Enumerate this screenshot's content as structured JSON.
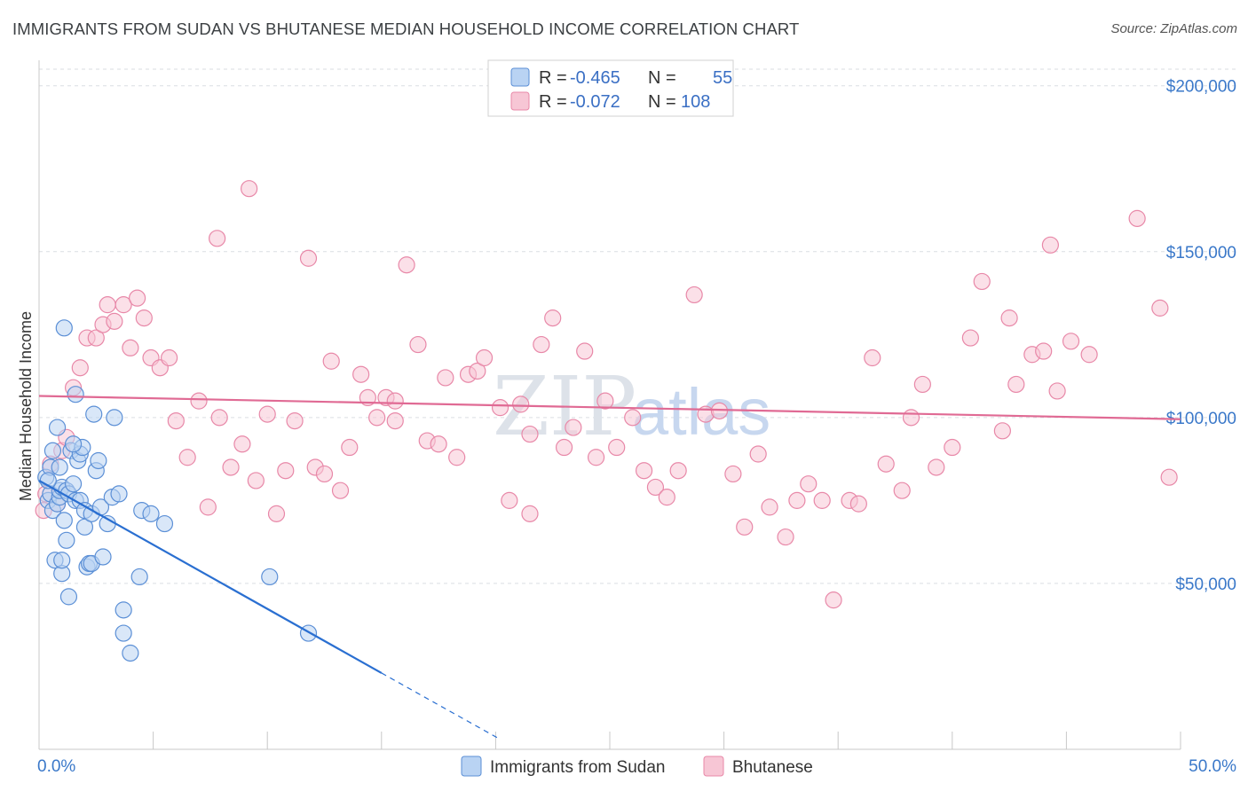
{
  "title": "IMMIGRANTS FROM SUDAN VS BHUTANESE MEDIAN HOUSEHOLD INCOME CORRELATION CHART",
  "source": "Source: ZipAtlas.com",
  "colors": {
    "blue": "#5b8fd6",
    "blue_fill": "#b9d3f3",
    "blue_line": "#2a6fd1",
    "pink": "#e888a8",
    "pink_fill": "#f7c6d5",
    "pink_line": "#e06a94",
    "tick_label": "#3a78c9"
  },
  "legend": {
    "rows": [
      {
        "r_label": "R =",
        "r_value": "-0.465",
        "n_label": "N =",
        "n_value": "55"
      },
      {
        "r_label": "R =",
        "r_value": "-0.072",
        "n_label": "N =",
        "n_value": "108"
      }
    ]
  },
  "watermark": {
    "zip": "ZIP",
    "atlas": "atlas"
  },
  "chart_data": {
    "type": "scatter",
    "xlabel": "",
    "ylabel": "Median Household Income",
    "xlim": [
      0,
      50
    ],
    "ylim": [
      0,
      205000
    ],
    "x_tick_labels": [
      "0.0%",
      "50.0%"
    ],
    "y_ticks": [
      50000,
      100000,
      150000,
      200000
    ],
    "y_tick_labels": [
      "$50,000",
      "$100,000",
      "$150,000",
      "$200,000"
    ],
    "series": [
      {
        "name": "Immigrants from Sudan",
        "trend": {
          "x0": 0,
          "y0": 81000,
          "x1": 15,
          "y1": 23000,
          "dash_to_x": 20.2,
          "dash_to_y": 3000
        },
        "points": [
          [
            0.3,
            82000
          ],
          [
            0.4,
            75000
          ],
          [
            0.5,
            85000
          ],
          [
            0.5,
            77000
          ],
          [
            0.6,
            90000
          ],
          [
            0.6,
            72000
          ],
          [
            0.7,
            57000
          ],
          [
            0.8,
            97000
          ],
          [
            0.8,
            74000
          ],
          [
            0.9,
            76000
          ],
          [
            0.9,
            78000
          ],
          [
            1.0,
            53000
          ],
          [
            1.0,
            57000
          ],
          [
            1.0,
            79000
          ],
          [
            1.1,
            127000
          ],
          [
            1.1,
            69000
          ],
          [
            1.2,
            63000
          ],
          [
            1.2,
            78000
          ],
          [
            1.3,
            46000
          ],
          [
            1.3,
            77000
          ],
          [
            1.4,
            90000
          ],
          [
            1.5,
            80000
          ],
          [
            1.6,
            75000
          ],
          [
            1.6,
            107000
          ],
          [
            1.7,
            87000
          ],
          [
            1.8,
            75000
          ],
          [
            1.8,
            89000
          ],
          [
            1.9,
            91000
          ],
          [
            2.0,
            72000
          ],
          [
            2.0,
            67000
          ],
          [
            2.1,
            55000
          ],
          [
            2.2,
            56000
          ],
          [
            2.3,
            56000
          ],
          [
            2.3,
            71000
          ],
          [
            2.4,
            101000
          ],
          [
            2.5,
            84000
          ],
          [
            2.6,
            87000
          ],
          [
            2.7,
            73000
          ],
          [
            2.8,
            58000
          ],
          [
            3.0,
            68000
          ],
          [
            3.2,
            76000
          ],
          [
            3.3,
            100000
          ],
          [
            3.5,
            77000
          ],
          [
            3.7,
            42000
          ],
          [
            3.7,
            35000
          ],
          [
            4.0,
            29000
          ],
          [
            4.4,
            52000
          ],
          [
            4.5,
            72000
          ],
          [
            4.9,
            71000
          ],
          [
            5.5,
            68000
          ],
          [
            10.1,
            52000
          ],
          [
            11.8,
            35000
          ],
          [
            0.4,
            81000
          ],
          [
            0.9,
            85000
          ],
          [
            1.5,
            92000
          ]
        ]
      },
      {
        "name": "Bhutanese",
        "trend": {
          "x0": 0,
          "y0": 106500,
          "x1": 50,
          "y1": 99500
        },
        "points": [
          [
            0.2,
            72000
          ],
          [
            0.3,
            77000
          ],
          [
            0.5,
            86000
          ],
          [
            0.8,
            74000
          ],
          [
            1.0,
            90000
          ],
          [
            1.2,
            94000
          ],
          [
            1.5,
            109000
          ],
          [
            1.8,
            115000
          ],
          [
            2.1,
            124000
          ],
          [
            2.5,
            124000
          ],
          [
            2.8,
            128000
          ],
          [
            3.0,
            134000
          ],
          [
            3.3,
            129000
          ],
          [
            3.7,
            134000
          ],
          [
            4.0,
            121000
          ],
          [
            4.3,
            136000
          ],
          [
            4.6,
            130000
          ],
          [
            4.9,
            118000
          ],
          [
            5.3,
            115000
          ],
          [
            5.7,
            118000
          ],
          [
            6.0,
            99000
          ],
          [
            6.5,
            88000
          ],
          [
            7.0,
            105000
          ],
          [
            7.4,
            73000
          ],
          [
            7.8,
            154000
          ],
          [
            7.9,
            100000
          ],
          [
            8.4,
            85000
          ],
          [
            8.9,
            92000
          ],
          [
            9.2,
            169000
          ],
          [
            9.5,
            81000
          ],
          [
            10.0,
            101000
          ],
          [
            10.4,
            71000
          ],
          [
            10.8,
            84000
          ],
          [
            11.2,
            99000
          ],
          [
            11.8,
            148000
          ],
          [
            12.1,
            85000
          ],
          [
            12.5,
            83000
          ],
          [
            12.8,
            117000
          ],
          [
            13.2,
            78000
          ],
          [
            13.6,
            91000
          ],
          [
            14.1,
            113000
          ],
          [
            14.4,
            106000
          ],
          [
            14.8,
            100000
          ],
          [
            15.2,
            106000
          ],
          [
            15.6,
            99000
          ],
          [
            16.1,
            146000
          ],
          [
            16.6,
            122000
          ],
          [
            17.0,
            93000
          ],
          [
            17.5,
            92000
          ],
          [
            17.8,
            112000
          ],
          [
            18.3,
            88000
          ],
          [
            18.8,
            113000
          ],
          [
            19.2,
            114000
          ],
          [
            19.5,
            118000
          ],
          [
            20.2,
            103000
          ],
          [
            20.6,
            75000
          ],
          [
            21.1,
            104000
          ],
          [
            21.5,
            71000
          ],
          [
            22.0,
            122000
          ],
          [
            22.5,
            130000
          ],
          [
            23.0,
            91000
          ],
          [
            23.4,
            97000
          ],
          [
            23.9,
            120000
          ],
          [
            24.4,
            88000
          ],
          [
            24.8,
            105000
          ],
          [
            25.3,
            91000
          ],
          [
            26.0,
            100000
          ],
          [
            26.5,
            84000
          ],
          [
            27.0,
            79000
          ],
          [
            27.5,
            76000
          ],
          [
            28.0,
            84000
          ],
          [
            28.7,
            137000
          ],
          [
            29.2,
            101000
          ],
          [
            29.8,
            102000
          ],
          [
            30.4,
            83000
          ],
          [
            30.9,
            67000
          ],
          [
            31.5,
            89000
          ],
          [
            32.0,
            73000
          ],
          [
            32.7,
            64000
          ],
          [
            33.2,
            75000
          ],
          [
            33.7,
            80000
          ],
          [
            34.3,
            75000
          ],
          [
            34.8,
            45000
          ],
          [
            35.5,
            75000
          ],
          [
            35.9,
            74000
          ],
          [
            36.5,
            118000
          ],
          [
            37.1,
            86000
          ],
          [
            37.8,
            78000
          ],
          [
            38.2,
            100000
          ],
          [
            38.7,
            110000
          ],
          [
            39.3,
            85000
          ],
          [
            40.0,
            91000
          ],
          [
            40.8,
            124000
          ],
          [
            41.3,
            141000
          ],
          [
            42.2,
            96000
          ],
          [
            42.5,
            130000
          ],
          [
            42.8,
            110000
          ],
          [
            43.5,
            119000
          ],
          [
            44.0,
            120000
          ],
          [
            44.6,
            108000
          ],
          [
            44.3,
            152000
          ],
          [
            45.2,
            123000
          ],
          [
            46.0,
            119000
          ],
          [
            48.1,
            160000
          ],
          [
            49.1,
            133000
          ],
          [
            49.5,
            82000
          ],
          [
            15.6,
            105000
          ],
          [
            21.5,
            95000
          ]
        ]
      }
    ]
  },
  "bottom_legend": [
    {
      "label": "Immigrants from Sudan"
    },
    {
      "label": "Bhutanese"
    }
  ]
}
